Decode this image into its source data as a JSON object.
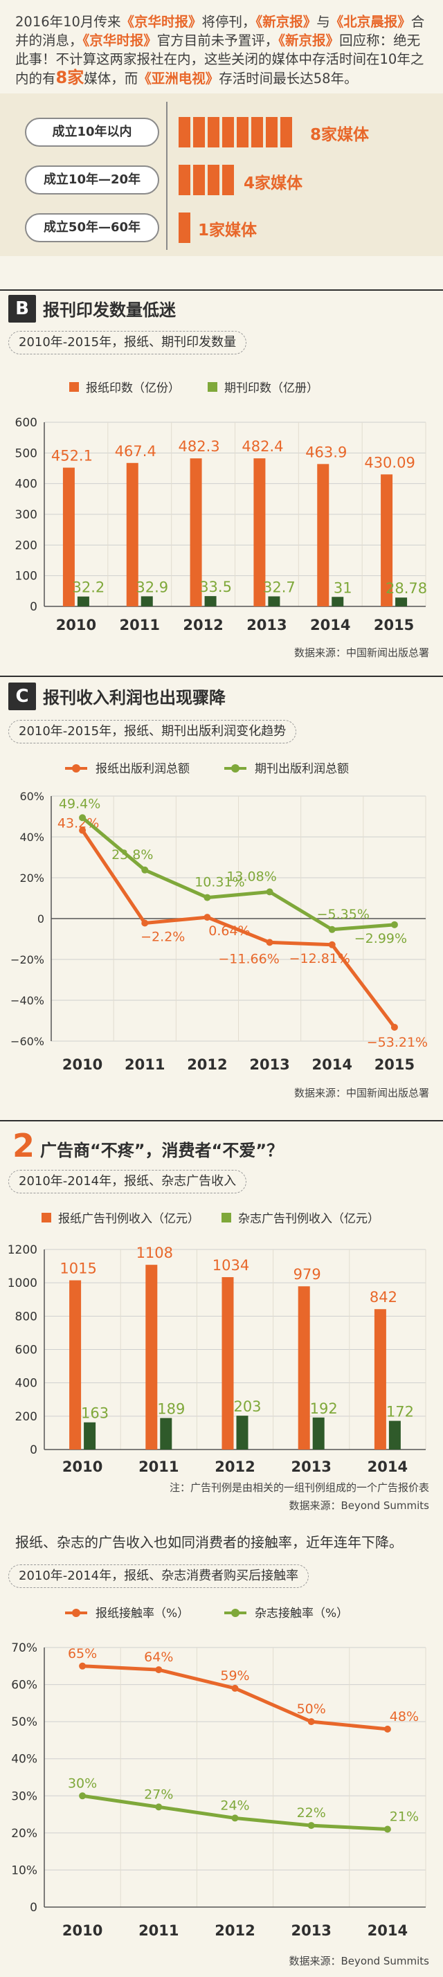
{
  "intro": {
    "t1": "2016年10月传来",
    "n1": "《京华时报》",
    "t2": "将停刊，",
    "n2": "《新京报》",
    "t3": "与",
    "n3": "《北京晨报》",
    "t4": "合并的消息，",
    "n4": "《京华时报》",
    "t5": "官方目前未予置评，",
    "n5": "《新京报》",
    "t6": "回应称：绝无此事！不计算这两家报社在内，这些关闭的媒体中存活时间在10年之内的有",
    "n6": "8家",
    "t7": "媒体，而",
    "n7": "《亚洲电视》",
    "t8": "存活时间最长达58年。"
  },
  "lifespan": [
    {
      "label": "成立10年以内",
      "count": 8,
      "note": "8家媒体"
    },
    {
      "label": "成立10年—20年",
      "count": 4,
      "note": "4家媒体"
    },
    {
      "label": "成立50年—60年",
      "count": 1,
      "note": "1家媒体"
    }
  ],
  "secB": {
    "badge": "B",
    "title": "报刊印发数量低迷",
    "subtitle": "2010年-2015年，报纸、期刊印发数量",
    "source": "数据来源：中国新闻出版总署"
  },
  "secC": {
    "badge": "C",
    "title": "报刊收入利润也出现骤降",
    "subtitle": "2010年-2015年，报纸、期刊出版利润变化趋势",
    "source": "数据来源：中国新闻出版总署"
  },
  "sec2": {
    "num": "2",
    "title": "广告商“不疼”，消费者“不爱”？",
    "subtitle": "2010年-2014年，报纸、杂志广告收入",
    "note": "注：广告刊例是由相关的一组刊例组成的一个广告报价表",
    "source": "数据来源：Beyond Summits",
    "para": "报纸、杂志的广告收入也如同消费者的接触率，近年连年下降。",
    "subtitle2": "2010年-2014年，报纸、杂志消费者购买后接触率",
    "source2": "数据来源：Beyond Summits"
  },
  "colors": {
    "orange": "#e8672a",
    "green": "#7fa83a",
    "dark_green": "#2f5a2a"
  },
  "chart_data": [
    {
      "type": "bar",
      "categories": [
        "2010",
        "2011",
        "2012",
        "2013",
        "2014",
        "2015"
      ],
      "series": [
        {
          "name": "报纸印数（亿份）",
          "values": [
            452.1,
            467.4,
            482.3,
            482.4,
            463.9,
            430.09
          ],
          "labels": [
            "452.1",
            "467.4",
            "482.3",
            "482.4",
            "463.9",
            "430.09"
          ]
        },
        {
          "name": "期刊印数（亿册）",
          "values": [
            32.2,
            32.9,
            33.5,
            32.7,
            31,
            28.78
          ],
          "labels": [
            "32.2",
            "32.9",
            "33.5",
            "32.7",
            "31",
            "28.78"
          ]
        }
      ],
      "yticks": [
        "0",
        "100",
        "200",
        "300",
        "400",
        "500",
        "600"
      ],
      "ylim": [
        0,
        600
      ],
      "grid": true
    },
    {
      "type": "line",
      "categories": [
        "2010",
        "2011",
        "2012",
        "2013",
        "2014",
        "2015"
      ],
      "series": [
        {
          "name": "报纸出版利润总额",
          "values": [
            43.2,
            -2.2,
            0.64,
            -11.66,
            -12.81,
            -53.21
          ],
          "labels": [
            "43.2%",
            "−2.2%",
            "0.64%",
            "−11.66%",
            "−12.81%",
            "−53.21%"
          ]
        },
        {
          "name": "期刊出版利润总额",
          "values": [
            49.4,
            23.8,
            10.31,
            13.08,
            -5.35,
            -2.99
          ],
          "labels": [
            "49.4%",
            "23.8%",
            "10.31%",
            "13.08%",
            "−5.35%",
            "−2.99%"
          ]
        }
      ],
      "yticks": [
        "60%",
        "40%",
        "20%",
        "0",
        "−20%",
        "−40%",
        "−60%"
      ],
      "ylim": [
        -60,
        60
      ],
      "grid": true
    },
    {
      "type": "bar",
      "categories": [
        "2010",
        "2011",
        "2012",
        "2013",
        "2014"
      ],
      "series": [
        {
          "name": "报纸广告刊例收入（亿元）",
          "values": [
            1015,
            1108,
            1034,
            979,
            842
          ],
          "labels": [
            "1015",
            "1108",
            "1034",
            "979",
            "842"
          ]
        },
        {
          "name": "杂志广告刊例收入（亿元）",
          "values": [
            163,
            189,
            203,
            192,
            172
          ],
          "labels": [
            "163",
            "189",
            "203",
            "192",
            "172"
          ]
        }
      ],
      "yticks": [
        "0",
        "200",
        "400",
        "600",
        "800",
        "1000",
        "1200"
      ],
      "ylim": [
        0,
        1200
      ],
      "grid": true
    },
    {
      "type": "line",
      "categories": [
        "2010",
        "2011",
        "2012",
        "2013",
        "2014"
      ],
      "series": [
        {
          "name": "报纸接触率（%）",
          "values": [
            65,
            64,
            59,
            50,
            48
          ],
          "labels": [
            "65%",
            "64%",
            "59%",
            "50%",
            "48%"
          ]
        },
        {
          "name": "杂志接触率（%）",
          "values": [
            30,
            27,
            24,
            22,
            21
          ],
          "labels": [
            "30%",
            "27%",
            "24%",
            "22%",
            "21%"
          ]
        }
      ],
      "yticks": [
        "0",
        "10%",
        "20%",
        "30%",
        "40%",
        "50%",
        "60%",
        "70%"
      ],
      "ylim": [
        0,
        70
      ],
      "grid": true
    }
  ]
}
